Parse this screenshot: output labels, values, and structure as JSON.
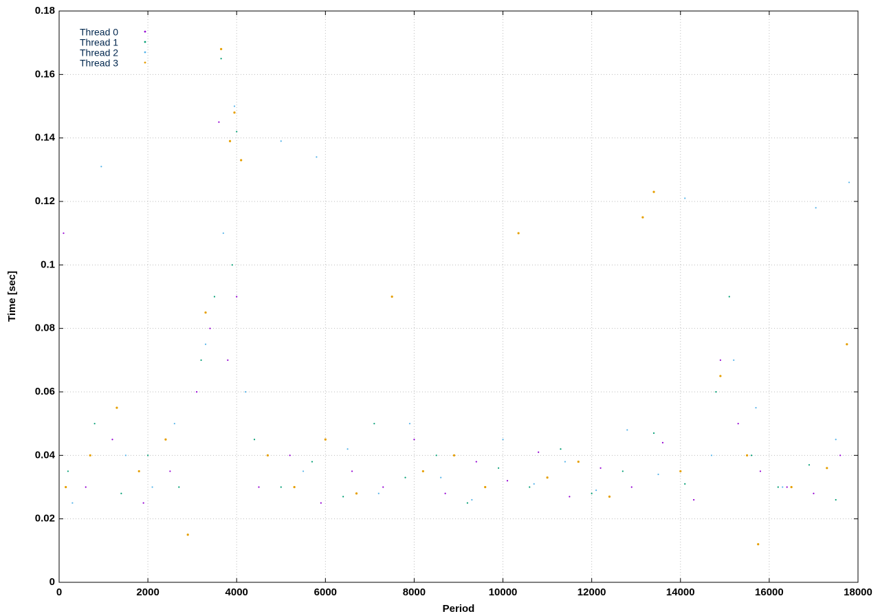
{
  "chart_data": {
    "type": "scatter",
    "xlabel": "Period",
    "ylabel": "Time [sec]",
    "xlim": [
      0,
      18000
    ],
    "ylim": [
      0,
      0.18
    ],
    "xticks": [
      0,
      2000,
      4000,
      6000,
      8000,
      10000,
      12000,
      14000,
      16000,
      18000
    ],
    "yticks": [
      0,
      0.02,
      0.04,
      0.06,
      0.08,
      0.1,
      0.12,
      0.14,
      0.16,
      0.18
    ],
    "grid": true,
    "legend": "top-left",
    "series": [
      {
        "name": "Thread 0",
        "color": "#9400d3",
        "x": [
          100,
          600,
          1200,
          1900,
          2500,
          3100,
          3400,
          3600,
          3800,
          4000,
          4500,
          5200,
          5900,
          6600,
          7300,
          8000,
          8700,
          9400,
          10100,
          10800,
          11500,
          12200,
          12900,
          13600,
          14300,
          14900,
          15300,
          15800,
          16400,
          17000,
          17600
        ],
        "values": [
          0.11,
          0.03,
          0.045,
          0.025,
          0.035,
          0.06,
          0.08,
          0.145,
          0.07,
          0.09,
          0.03,
          0.04,
          0.025,
          0.035,
          0.03,
          0.045,
          0.028,
          0.038,
          0.032,
          0.041,
          0.027,
          0.036,
          0.03,
          0.044,
          0.026,
          0.07,
          0.05,
          0.035,
          0.03,
          0.028,
          0.04
        ]
      },
      {
        "name": "Thread 1",
        "color": "#009e73",
        "x": [
          200,
          800,
          1400,
          2000,
          2700,
          3200,
          3500,
          3650,
          3900,
          4000,
          4400,
          5000,
          5700,
          6400,
          7100,
          7800,
          8500,
          9200,
          9900,
          10600,
          11300,
          12000,
          12700,
          13400,
          14100,
          14800,
          15100,
          15600,
          16200,
          16900,
          17500
        ],
        "values": [
          0.035,
          0.05,
          0.028,
          0.04,
          0.03,
          0.07,
          0.09,
          0.165,
          0.1,
          0.142,
          0.045,
          0.03,
          0.038,
          0.027,
          0.05,
          0.033,
          0.04,
          0.025,
          0.036,
          0.03,
          0.042,
          0.028,
          0.035,
          0.047,
          0.031,
          0.06,
          0.09,
          0.04,
          0.03,
          0.037,
          0.026
        ]
      },
      {
        "name": "Thread 2",
        "color": "#56b4e9",
        "x": [
          300,
          950,
          1500,
          2100,
          2600,
          3300,
          3700,
          3950,
          4200,
          5000,
          5500,
          5800,
          6500,
          7200,
          7900,
          8600,
          9300,
          10000,
          10700,
          11400,
          12100,
          12800,
          13500,
          14100,
          14700,
          15200,
          15700,
          16300,
          17050,
          17500,
          17800
        ],
        "values": [
          0.025,
          0.131,
          0.04,
          0.03,
          0.05,
          0.075,
          0.11,
          0.15,
          0.06,
          0.139,
          0.035,
          0.134,
          0.042,
          0.028,
          0.05,
          0.033,
          0.026,
          0.045,
          0.031,
          0.038,
          0.029,
          0.048,
          0.034,
          0.121,
          0.04,
          0.07,
          0.055,
          0.03,
          0.118,
          0.045,
          0.126
        ]
      },
      {
        "name": "Thread 3",
        "color": "#e69f00",
        "x": [
          150,
          700,
          1300,
          1800,
          2400,
          2900,
          3300,
          3650,
          3850,
          3950,
          4100,
          4700,
          5300,
          6000,
          6700,
          7500,
          8200,
          8900,
          9600,
          10350,
          11000,
          11700,
          12400,
          13150,
          13400,
          14000,
          14900,
          15500,
          15750,
          16500,
          17300,
          17750
        ],
        "values": [
          0.03,
          0.04,
          0.055,
          0.035,
          0.045,
          0.015,
          0.085,
          0.168,
          0.139,
          0.148,
          0.133,
          0.04,
          0.03,
          0.045,
          0.028,
          0.09,
          0.035,
          0.04,
          0.03,
          0.11,
          0.033,
          0.038,
          0.027,
          0.115,
          0.123,
          0.035,
          0.065,
          0.04,
          0.012,
          0.03,
          0.036,
          0.075
        ]
      }
    ]
  }
}
